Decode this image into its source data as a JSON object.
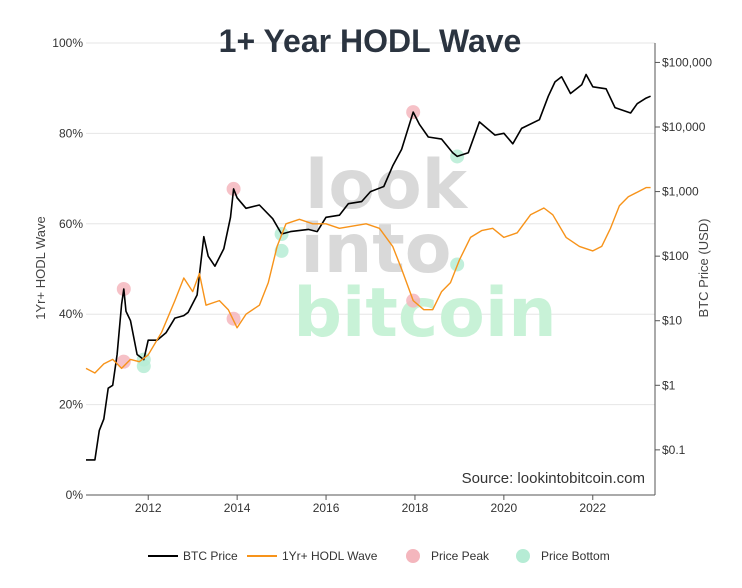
{
  "chart_data": {
    "type": "line",
    "title": "1+ Year HODL Wave",
    "ylabel_left": "1Yr+ HODL Wave",
    "ylabel_right": "BTC Price (USD)",
    "source": "Source: lookintobitcoin.com",
    "watermark": [
      "look",
      "into",
      "bitcoin"
    ],
    "x_ticks": [
      "2012",
      "2014",
      "2016",
      "2018",
      "2020",
      "2022"
    ],
    "y_left_ticks": [
      "0%",
      "20%",
      "40%",
      "60%",
      "80%",
      "100%"
    ],
    "y_right_ticks": [
      "$0.1",
      "$1",
      "$10",
      "$100",
      "$1,000",
      "$10,000",
      "$100,000"
    ],
    "y_left_range": [
      0,
      100
    ],
    "y_right_scale": "log",
    "y_right_range": [
      0.02,
      200000
    ],
    "x_range": [
      2010.6,
      2023.4
    ],
    "grid": "horizontal",
    "legend_position": "bottom",
    "colors": {
      "btc_price": "#000000",
      "hodl_wave": "#f7931a",
      "price_peak": "#f4b6bd",
      "price_bottom": "#b6ecd5",
      "title": "#2b3440",
      "watermark_grey": "#d9d9d9",
      "watermark_green": "#c8f2d7"
    },
    "series": [
      {
        "name": "BTC Price",
        "axis": "right",
        "points": [
          [
            2010.6,
            0.07
          ],
          [
            2010.8,
            0.07
          ],
          [
            2010.9,
            0.2
          ],
          [
            2011.0,
            0.3
          ],
          [
            2011.1,
            0.9
          ],
          [
            2011.2,
            1.0
          ],
          [
            2011.3,
            3.0
          ],
          [
            2011.4,
            18
          ],
          [
            2011.45,
            31
          ],
          [
            2011.5,
            14
          ],
          [
            2011.6,
            10
          ],
          [
            2011.75,
            3.0
          ],
          [
            2011.9,
            2.5
          ],
          [
            2012.0,
            5.0
          ],
          [
            2012.2,
            5.0
          ],
          [
            2012.4,
            6.5
          ],
          [
            2012.6,
            11
          ],
          [
            2012.8,
            12
          ],
          [
            2012.9,
            13.5
          ],
          [
            2013.1,
            25
          ],
          [
            2013.25,
            200
          ],
          [
            2013.35,
            100
          ],
          [
            2013.5,
            70
          ],
          [
            2013.7,
            130
          ],
          [
            2013.85,
            400
          ],
          [
            2013.92,
            1100
          ],
          [
            2014.0,
            800
          ],
          [
            2014.2,
            550
          ],
          [
            2014.5,
            620
          ],
          [
            2014.8,
            380
          ],
          [
            2015.0,
            220
          ],
          [
            2015.2,
            240
          ],
          [
            2015.6,
            260
          ],
          [
            2015.8,
            240
          ],
          [
            2016.0,
            400
          ],
          [
            2016.3,
            430
          ],
          [
            2016.5,
            650
          ],
          [
            2016.8,
            700
          ],
          [
            2017.0,
            1000
          ],
          [
            2017.3,
            1200
          ],
          [
            2017.5,
            2500
          ],
          [
            2017.7,
            4500
          ],
          [
            2017.96,
            17000
          ],
          [
            2018.1,
            11000
          ],
          [
            2018.3,
            7000
          ],
          [
            2018.6,
            6500
          ],
          [
            2018.85,
            4000
          ],
          [
            2018.95,
            3500
          ],
          [
            2019.2,
            4000
          ],
          [
            2019.45,
            12000
          ],
          [
            2019.8,
            7500
          ],
          [
            2020.0,
            8000
          ],
          [
            2020.2,
            5500
          ],
          [
            2020.4,
            9500
          ],
          [
            2020.8,
            13000
          ],
          [
            2021.0,
            30000
          ],
          [
            2021.15,
            50000
          ],
          [
            2021.3,
            60000
          ],
          [
            2021.5,
            33000
          ],
          [
            2021.75,
            45000
          ],
          [
            2021.85,
            65000
          ],
          [
            2022.0,
            42000
          ],
          [
            2022.3,
            39000
          ],
          [
            2022.5,
            20000
          ],
          [
            2022.85,
            16500
          ],
          [
            2023.0,
            23000
          ],
          [
            2023.2,
            28000
          ],
          [
            2023.3,
            30000
          ]
        ]
      },
      {
        "name": "1Yr+ HODL Wave",
        "axis": "left",
        "points": [
          [
            2010.6,
            28
          ],
          [
            2010.8,
            27
          ],
          [
            2011.0,
            29
          ],
          [
            2011.2,
            30
          ],
          [
            2011.4,
            28
          ],
          [
            2011.6,
            30
          ],
          [
            2011.8,
            29.5
          ],
          [
            2012.0,
            31
          ],
          [
            2012.3,
            36
          ],
          [
            2012.6,
            43
          ],
          [
            2012.8,
            48
          ],
          [
            2013.0,
            45
          ],
          [
            2013.15,
            49
          ],
          [
            2013.3,
            42
          ],
          [
            2013.6,
            43
          ],
          [
            2013.8,
            41
          ],
          [
            2014.0,
            37
          ],
          [
            2014.2,
            40
          ],
          [
            2014.5,
            42
          ],
          [
            2014.7,
            47
          ],
          [
            2014.9,
            55
          ],
          [
            2015.1,
            60
          ],
          [
            2015.4,
            61
          ],
          [
            2015.7,
            60
          ],
          [
            2016.0,
            60
          ],
          [
            2016.3,
            59
          ],
          [
            2016.6,
            59.5
          ],
          [
            2016.9,
            60
          ],
          [
            2017.2,
            59
          ],
          [
            2017.5,
            55
          ],
          [
            2017.7,
            50
          ],
          [
            2017.96,
            43
          ],
          [
            2018.2,
            41
          ],
          [
            2018.4,
            41
          ],
          [
            2018.6,
            45
          ],
          [
            2018.8,
            47
          ],
          [
            2019.0,
            52
          ],
          [
            2019.25,
            57
          ],
          [
            2019.5,
            58.5
          ],
          [
            2019.75,
            59
          ],
          [
            2020.0,
            57
          ],
          [
            2020.3,
            58
          ],
          [
            2020.6,
            62
          ],
          [
            2020.9,
            63.5
          ],
          [
            2021.1,
            62
          ],
          [
            2021.4,
            57
          ],
          [
            2021.7,
            55
          ],
          [
            2022.0,
            54
          ],
          [
            2022.2,
            55
          ],
          [
            2022.4,
            59
          ],
          [
            2022.6,
            64
          ],
          [
            2022.8,
            66
          ],
          [
            2023.0,
            67
          ],
          [
            2023.2,
            68
          ],
          [
            2023.3,
            68
          ]
        ]
      }
    ],
    "markers": {
      "price_peak": [
        [
          2011.45,
          31
        ],
        [
          2013.92,
          1100
        ],
        [
          2017.96,
          17000
        ]
      ],
      "price_bottom": [
        [
          2011.9,
          2.5
        ],
        [
          2015.0,
          220
        ],
        [
          2018.95,
          3500
        ]
      ],
      "hodl_peak": [
        [
          2011.45,
          29.5
        ],
        [
          2013.92,
          39
        ],
        [
          2017.96,
          43
        ]
      ],
      "hodl_bottom": [
        [
          2011.9,
          28.5
        ],
        [
          2015.0,
          54
        ],
        [
          2018.95,
          51
        ]
      ]
    }
  },
  "legend": [
    {
      "key": "btc_price",
      "label": "BTC Price",
      "kind": "line"
    },
    {
      "key": "hodl_wave",
      "label": "1Yr+ HODL Wave",
      "kind": "line"
    },
    {
      "key": "price_peak",
      "label": "Price Peak",
      "kind": "dot"
    },
    {
      "key": "price_bottom",
      "label": "Price Bottom",
      "kind": "dot"
    }
  ]
}
